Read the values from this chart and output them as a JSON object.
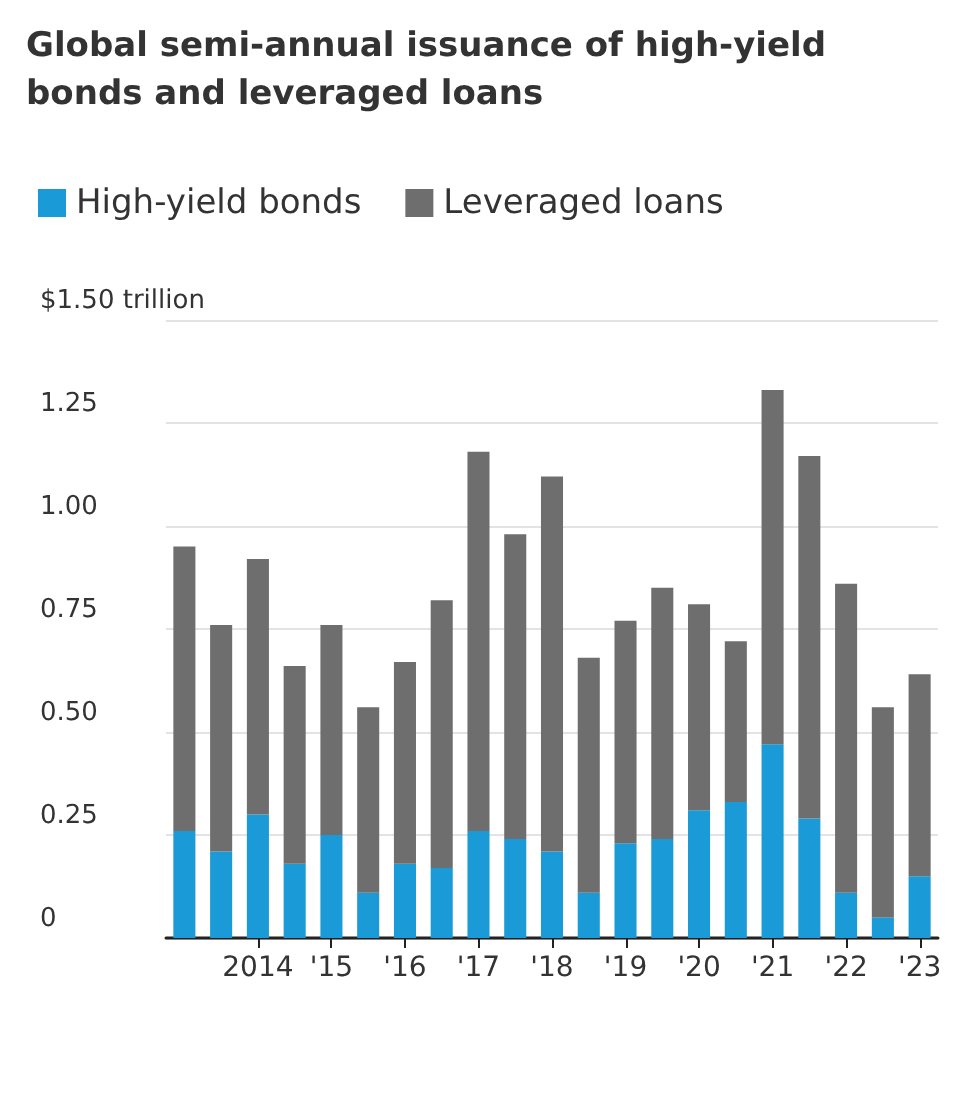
{
  "chart_data": {
    "type": "bar",
    "stacked": true,
    "title": "Global semi-annual issuance of high-yield bonds and leveraged loans",
    "categories": [
      null,
      null,
      "2014",
      null,
      "'15",
      null,
      "'16",
      null,
      "'17",
      null,
      "'18",
      null,
      "'19",
      null,
      "'20",
      null,
      "'21",
      null,
      "'22",
      null,
      "'23"
    ],
    "series": [
      {
        "name": "High-yield bonds",
        "color": "#1a9ad6",
        "values": [
          0.26,
          0.21,
          0.3,
          0.18,
          0.25,
          0.11,
          0.18,
          0.17,
          0.26,
          0.24,
          0.21,
          0.11,
          0.23,
          0.24,
          0.31,
          0.33,
          0.47,
          0.29,
          0.11,
          0.05,
          0.15
        ]
      },
      {
        "name": "Leveraged loans",
        "color": "#6e6e6e",
        "values": [
          0.69,
          0.55,
          0.62,
          0.48,
          0.51,
          0.45,
          0.49,
          0.65,
          0.92,
          0.74,
          0.91,
          0.57,
          0.54,
          0.61,
          0.5,
          0.39,
          0.86,
          0.88,
          0.75,
          0.51,
          0.49
        ]
      }
    ],
    "ylim": [
      0,
      1.5
    ],
    "yticks": [
      0,
      0.25,
      {
        "value": 0.5,
        "label": "0.50"
      },
      0.75,
      {
        "value": 1,
        "label": "1.00"
      },
      1.25,
      {
        "value": 1.5,
        "label": "$1.50 trillion"
      }
    ],
    "grid": "y",
    "legend": "top left"
  }
}
